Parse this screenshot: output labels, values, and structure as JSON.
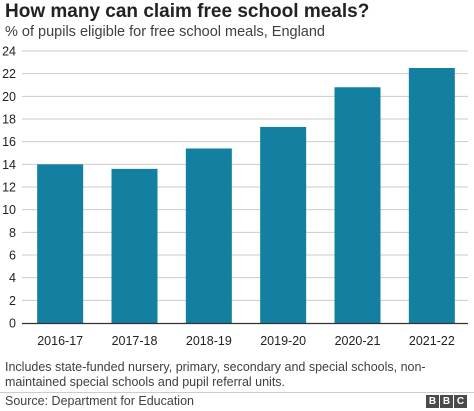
{
  "header": {
    "title": "How many can claim free school meals?",
    "subtitle": "% of pupils eligible for free school meals, England"
  },
  "footer": {
    "note": "Includes state-funded nursery, primary, secondary and special schools, non-maintained special schools and pupil referral units.",
    "source": "Source: Department for Education",
    "logo_letters": [
      "B",
      "B",
      "C"
    ]
  },
  "colors": {
    "bar": "#1380A1",
    "gridline": "#cbcbcb",
    "baseline": "#333333"
  },
  "chart_data": {
    "type": "bar",
    "categories": [
      "2016-17",
      "2017-18",
      "2018-19",
      "2019-20",
      "2020-21",
      "2021-22"
    ],
    "values": [
      14.0,
      13.6,
      15.4,
      17.3,
      20.8,
      22.5
    ],
    "ylim": [
      0,
      24
    ],
    "yticks": [
      0,
      2,
      4,
      6,
      8,
      10,
      12,
      14,
      16,
      18,
      20,
      22,
      24
    ],
    "grid": true
  }
}
